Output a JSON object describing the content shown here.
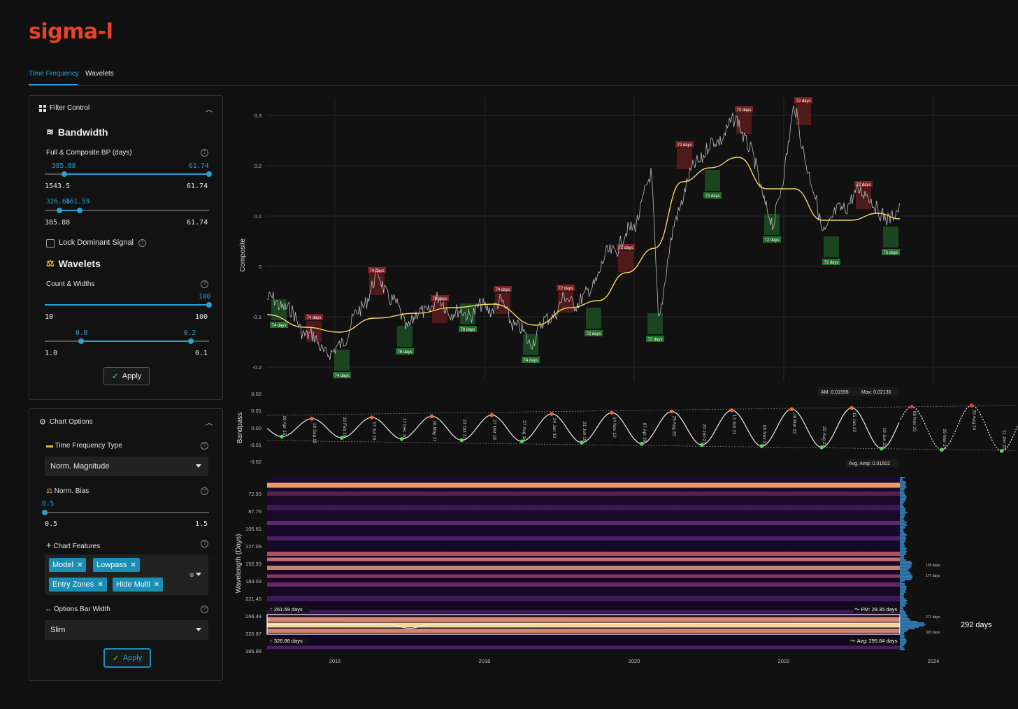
{
  "app": {
    "logo": "sigma-l"
  },
  "tabs": [
    {
      "label": "Time Frequency",
      "active": true
    },
    {
      "label": "Wavelets",
      "active": false
    }
  ],
  "filter_control": {
    "title": "Filter Control",
    "bandwidth_title": "Bandwidth",
    "full_composite_label": "Full & Composite BP (days)",
    "slider1": {
      "low_val": "385.88",
      "high_val": "61.74",
      "min": "1543.5",
      "max": "61.74"
    },
    "slider2": {
      "low_val": "326.66",
      "high_val": "161.59",
      "min": "385.88",
      "max": "61.74"
    },
    "lock_label": "Lock Dominant Signal",
    "wavelets_title": "Wavelets",
    "count_widths_label": "Count & Widths",
    "slider3": {
      "val": "100",
      "min": "10",
      "max": "100"
    },
    "slider4": {
      "low_val": "0.8",
      "high_val": "0.2",
      "min": "1.0",
      "max": "0.1"
    },
    "apply_label": "Apply"
  },
  "chart_options": {
    "title": "Chart Options",
    "tf_type_label": "Time Frequency Type",
    "tf_type_value": "Norm. Magnitude",
    "norm_bias_label": "Norm. Bias",
    "norm_bias": {
      "val": "0.5",
      "min": "0.5",
      "max": "1.5"
    },
    "features_label": "Chart Features",
    "features": [
      "Model",
      "Lowpass",
      "Entry Zones",
      "Hide Multi"
    ],
    "bar_width_label": "Options Bar Width",
    "bar_width_value": "Slim",
    "apply_label": "Apply"
  },
  "composite_chart": {
    "ylabel": "Composite",
    "yticks": [
      "0.3",
      "0.2",
      "0.1",
      "0",
      "-0.1",
      "-0.2"
    ],
    "peak_labels": [
      "74 days",
      "74 days",
      "78 days",
      "74 days",
      "72 days",
      "72 days",
      "72 days",
      "72 days",
      "72 days",
      "72 days"
    ],
    "trough_labels": [
      "74 days",
      "74 days",
      "76 days",
      "78 days",
      "74 days",
      "72 days",
      "72 days",
      "72 days",
      "72 days",
      "72 days",
      "72 days"
    ]
  },
  "bandpass_chart": {
    "ylabel": "Bandpass",
    "yticks": [
      "0.02",
      "0.01",
      "0.00",
      "-0.01",
      "-0.02"
    ],
    "am_label": "AM: 0.01598",
    "max_label": "Max: 0.02136",
    "avg_amp_label": "Avg. Amp: 0.01502",
    "date_labels": [
      "20 Apr 15",
      "18 Sep 15",
      "16 Feb 16",
      "17 Jul 16",
      "17 Dec 16",
      "20 May 17",
      "23 Oct 17",
      "27 Mar 18",
      "27 Aug 18",
      "24 Jan 19",
      "21 Jun 19",
      "14 Nov 19",
      "07 Apr 20",
      "29 Aug 20",
      "20 Jan 21",
      "13 Jun 21",
      "05 Nov 21",
      "29 Mar 22",
      "22 Aug 22",
      "15 Jan 23",
      "10 Jun 23",
      "08 Nov 23",
      "29 Mar 24",
      "20 Aug 24",
      "11 Jan 25"
    ]
  },
  "heatmap": {
    "ylabel": "Wavelength (Days)",
    "yticks": [
      "72.93",
      "87.76",
      "105.61",
      "127.09",
      "152.93",
      "184.03",
      "221.45",
      "266.48",
      "320.67",
      "385.88"
    ],
    "xticks": [
      "2016",
      "2018",
      "2020",
      "2022",
      "2024"
    ],
    "upper_band_label": "↑ 261.59 days",
    "lower_band_label": "↑ 326.66 days",
    "fm_label": "〜 FM: 29.35 days",
    "avg_label": "〜 Avg: 295.64 days",
    "dominant_label": "292 days",
    "side_labels": [
      "158 days",
      "177 days",
      "271 days",
      "320 days"
    ]
  },
  "colors": {
    "accent": "#2a9fd6",
    "logo": "#e8412c",
    "lowpass": "#f2d46b",
    "peak": "#6b1f1f",
    "trough": "#1d4d24"
  }
}
